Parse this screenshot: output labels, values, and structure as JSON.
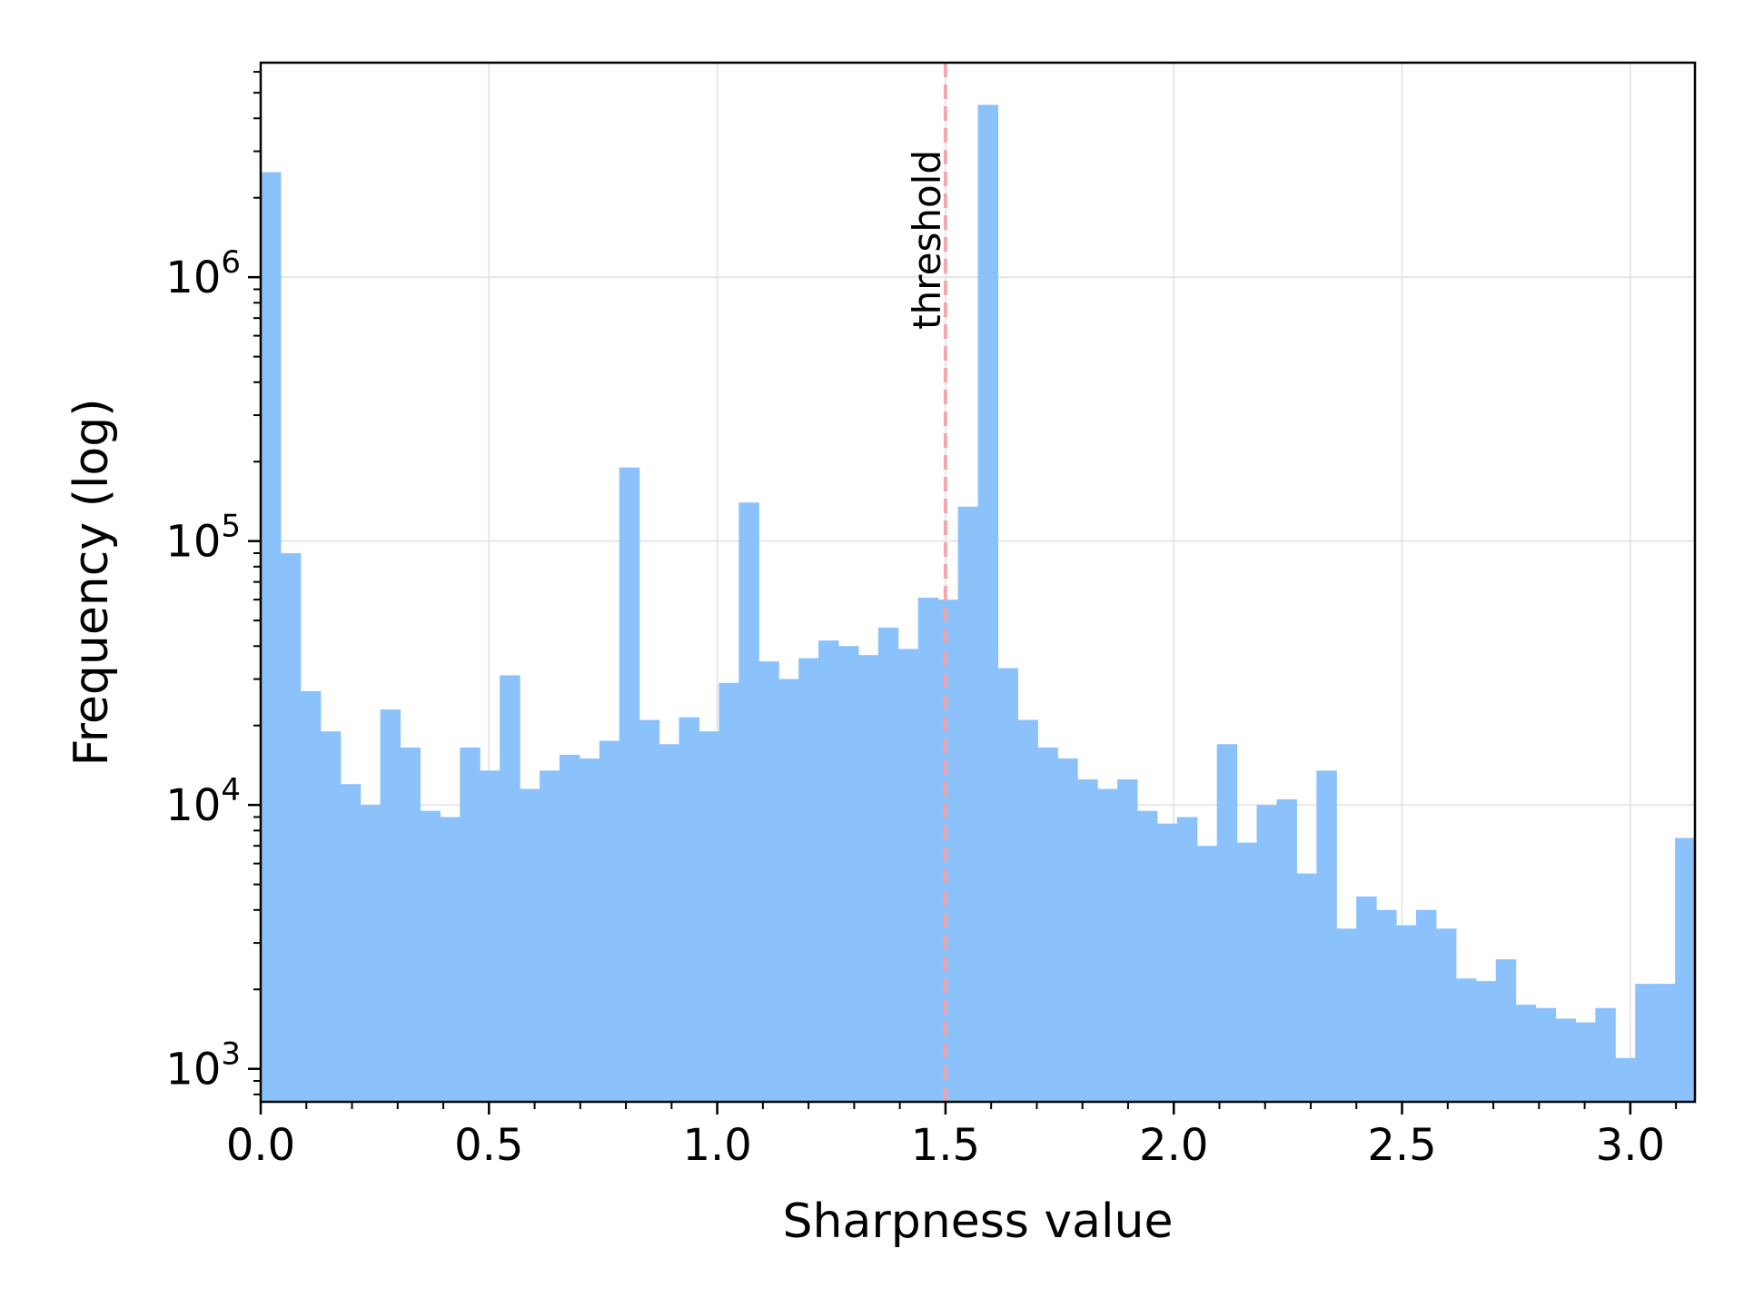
{
  "chart_data": {
    "type": "bar",
    "xlabel": "Sharpness value",
    "ylabel": "Frequency (log)",
    "xlim": [
      0,
      3.1416
    ],
    "ylim": [
      750,
      6500000
    ],
    "yscale": "log",
    "grid": true,
    "bin_width": 0.0436,
    "bin_starts": [
      0.0,
      0.0436,
      0.0873,
      0.1309,
      0.1745,
      0.2182,
      0.2618,
      0.3054,
      0.3491,
      0.3927,
      0.4363,
      0.48,
      0.5236,
      0.5672,
      0.6109,
      0.6545,
      0.6981,
      0.7418,
      0.7854,
      0.829,
      0.8727,
      0.9163,
      0.9599,
      1.0036,
      1.0472,
      1.0908,
      1.1345,
      1.1781,
      1.2217,
      1.2654,
      1.309,
      1.3526,
      1.3963,
      1.4399,
      1.4835,
      1.5272,
      1.5708,
      1.6144,
      1.6581,
      1.7017,
      1.7453,
      1.789,
      1.8326,
      1.8762,
      1.9199,
      1.9635,
      2.0071,
      2.0508,
      2.0944,
      2.138,
      2.1817,
      2.2253,
      2.2689,
      2.3126,
      2.3562,
      2.3998,
      2.4435,
      2.4871,
      2.5307,
      2.5744,
      2.618,
      2.6616,
      2.7053,
      2.7489,
      2.7925,
      2.8362,
      2.8798,
      2.9234,
      2.9671,
      3.0107,
      3.0543,
      3.098
    ],
    "values": [
      2500000,
      90000,
      27000,
      19000,
      12000,
      10000,
      23000,
      16500,
      9500,
      9000,
      16500,
      13500,
      31000,
      11500,
      13500,
      15500,
      15000,
      17500,
      190000,
      21000,
      17000,
      21500,
      19000,
      29000,
      140000,
      35000,
      30000,
      36000,
      42000,
      40000,
      37000,
      47000,
      39000,
      61000,
      60000,
      135000,
      4500000,
      33000,
      21000,
      16500,
      15000,
      12500,
      11500,
      12500,
      9500,
      8500,
      9000,
      7000,
      17000,
      7200,
      10000,
      10500,
      5500,
      13500,
      3400,
      4500,
      4000,
      3500,
      4000,
      3400,
      2200,
      2150,
      2600,
      1750,
      1700,
      1550,
      1500,
      1700,
      1100,
      2100,
      2100,
      7500
    ],
    "x_ticks": [
      0.0,
      0.5,
      1.0,
      1.5,
      2.0,
      2.5,
      3.0
    ],
    "x_tick_labels": [
      "0.0",
      "0.5",
      "1.0",
      "1.5",
      "2.0",
      "2.5",
      "3.0"
    ],
    "y_ticks": [
      1000,
      10000,
      100000,
      1000000
    ],
    "y_tick_labels": [
      {
        "base": "10",
        "exp": "3"
      },
      {
        "base": "10",
        "exp": "4"
      },
      {
        "base": "10",
        "exp": "5"
      },
      {
        "base": "10",
        "exp": "6"
      }
    ],
    "threshold": {
      "x": 1.5,
      "label": "threshold"
    },
    "colors": {
      "bar": "#8cc2fb",
      "threshold": "#f4a0a5",
      "grid": "#e6e6e6",
      "axis": "#000000"
    }
  }
}
